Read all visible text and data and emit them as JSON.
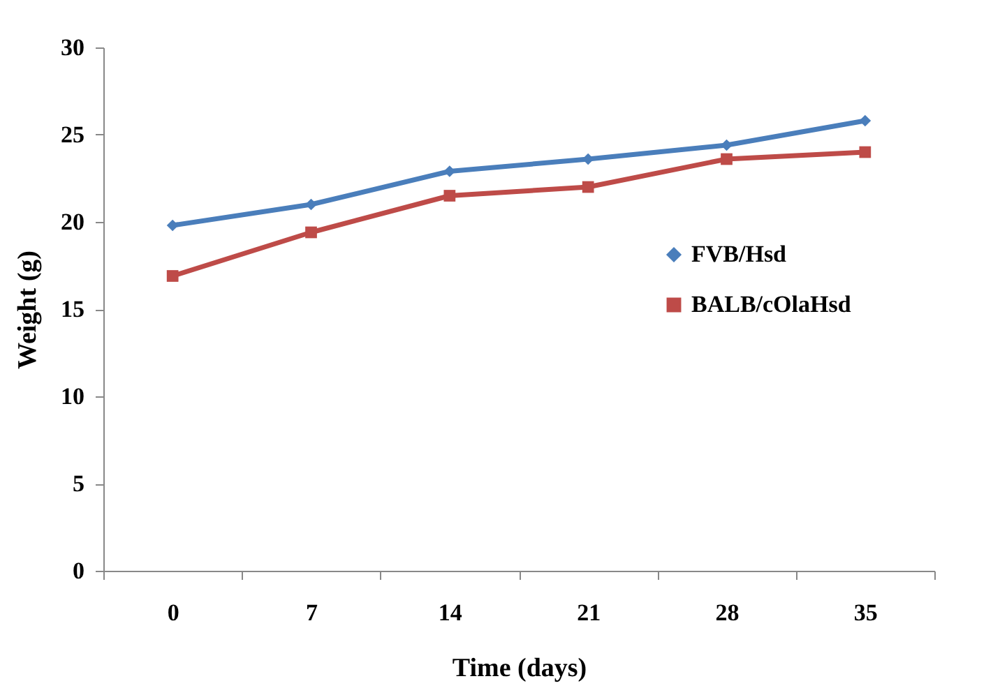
{
  "chart_data": {
    "type": "line",
    "xlabel": "Time (days)",
    "ylabel": "Weight (g)",
    "categories": [
      "0",
      "7",
      "14",
      "21",
      "28",
      "35"
    ],
    "series": [
      {
        "name": "FVB/Hsd",
        "color": "#4a7ebb",
        "marker": "diamond",
        "values": [
          19.8,
          21.0,
          22.9,
          23.6,
          24.4,
          25.8
        ]
      },
      {
        "name": "BALB/cOlaHsd",
        "color": "#be4b48",
        "marker": "square",
        "values": [
          16.9,
          19.4,
          21.5,
          22.0,
          23.6,
          24.0
        ]
      }
    ],
    "ylim": [
      0,
      30
    ],
    "yticks": [
      0,
      5,
      10,
      15,
      20,
      25,
      30
    ],
    "grid": false,
    "legend": "right",
    "line_style": "solid"
  }
}
